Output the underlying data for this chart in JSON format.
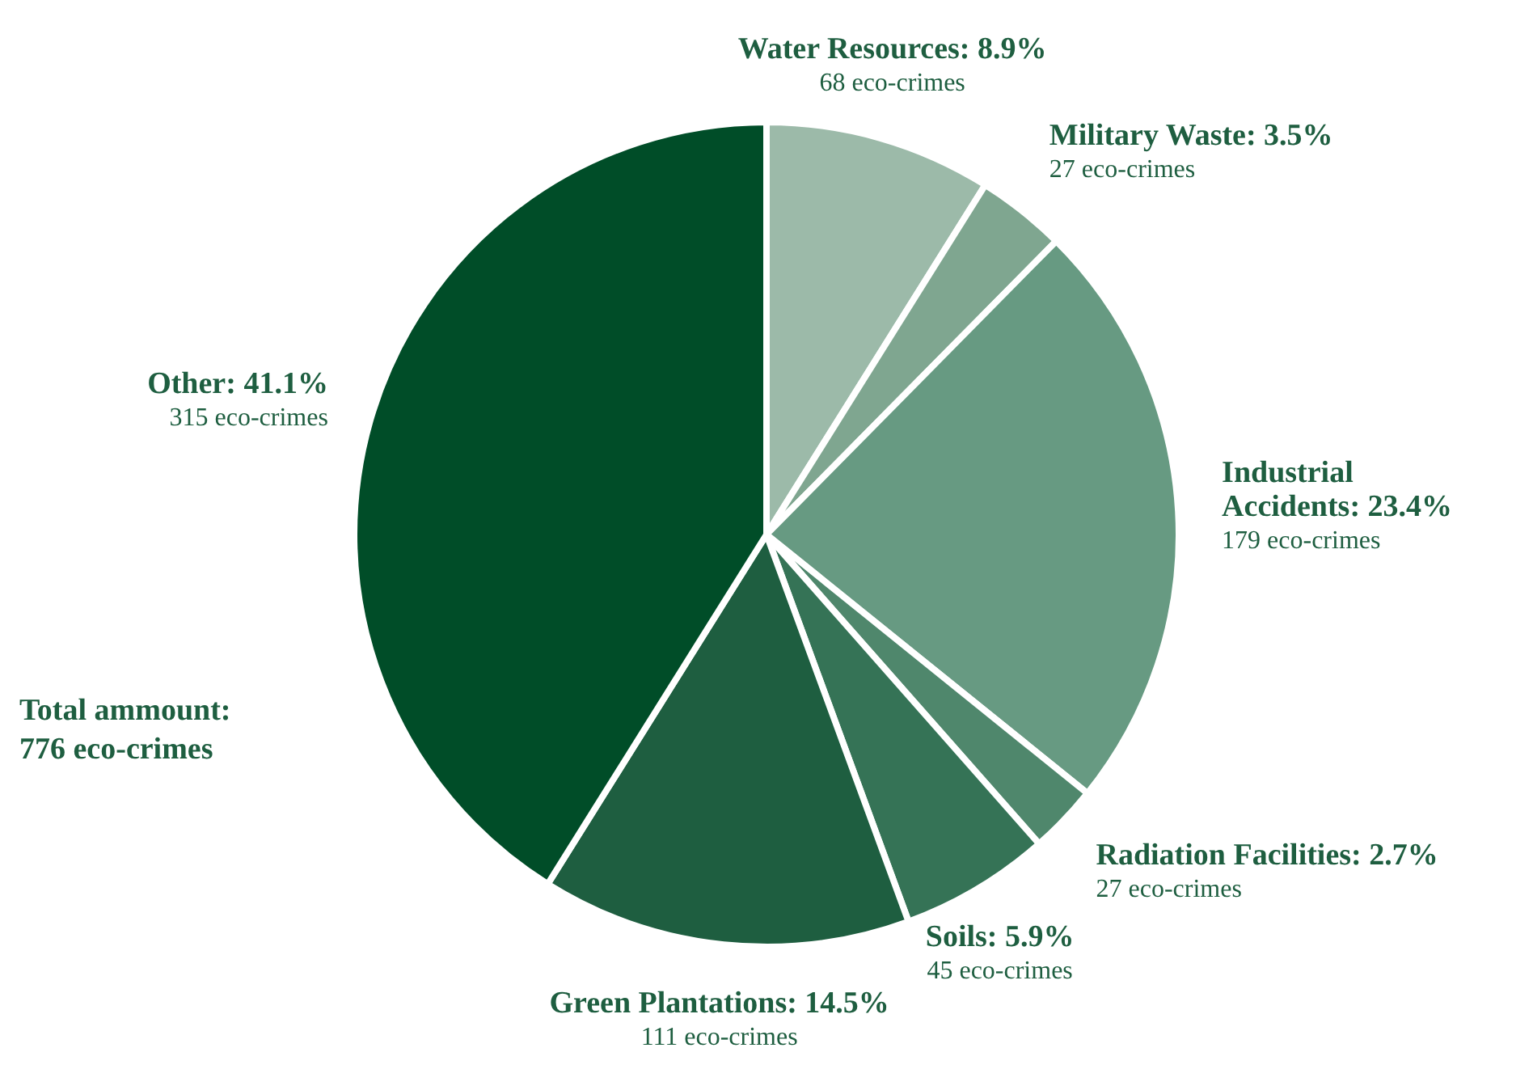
{
  "chart_data": {
    "type": "pie",
    "categories": [
      "Water Resources",
      "Military Waste",
      "Industrial Accidents",
      "Radiation Facilities",
      "Soils",
      "Green Plantations",
      "Other"
    ],
    "values": [
      8.9,
      3.5,
      23.4,
      2.7,
      5.9,
      14.5,
      41.1
    ],
    "value_labels": [
      "8.9%",
      "3.5%",
      "23.4%",
      "2.7%",
      "5.9%",
      "14.5%",
      "41.1%"
    ],
    "colors": [
      "#9cbaa9",
      "#7fa690",
      "#679a82",
      "#4f876c",
      "#357356",
      "#1e5e40",
      "#004d28"
    ],
    "annotations": [
      "68 eco-crimes",
      "27 eco-crimes",
      "179 eco-crimes",
      "27 eco-crimes",
      "45 eco-crimes",
      "111 eco-crimes",
      "315 eco-crimes",
      "Total ammount: 776 eco-crimes"
    ]
  }
}
